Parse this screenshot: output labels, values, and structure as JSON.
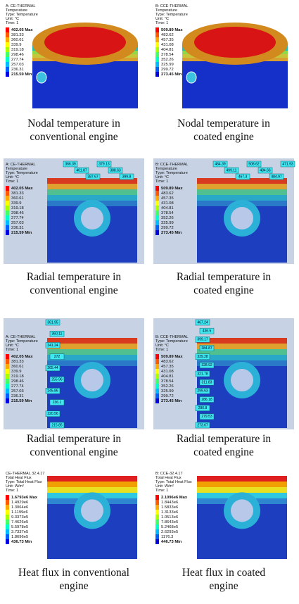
{
  "panels": [
    {
      "header": [
        "A: CE-THERMAL",
        "Temperature",
        "Type: Temperature",
        "Unit: °C",
        "Time: 1"
      ],
      "legend": [
        "402.05 Max",
        "381.33",
        "360.61",
        "339.9",
        "319.18",
        "298.46",
        "277.74",
        "257.03",
        "236.31",
        "215.59 Min"
      ],
      "callouts": [],
      "caption": [
        "Nodal temperature in",
        "conventional engine"
      ]
    },
    {
      "header": [
        "B: CCE-THERMAL",
        "Temperature",
        "Type: Temperature",
        "Unit: °C",
        "Time: 1"
      ],
      "legend": [
        "509.89 Max",
        "483.62",
        "457.35",
        "431.08",
        "404.81",
        "378.54",
        "352.26",
        "325.99",
        "299.72",
        "273.45 Min"
      ],
      "callouts": [],
      "caption": [
        "Nodal temperature in",
        "coated engine"
      ]
    },
    {
      "header": [
        "A: CE-THERMAL",
        "Temperature",
        "Type: Temperature",
        "Unit: °C",
        "Time: 1"
      ],
      "legend": [
        "402.05 Max",
        "381.33",
        "360.61",
        "339.9",
        "319.18",
        "298.46",
        "277.74",
        "257.03",
        "236.31",
        "215.59 Min"
      ],
      "callouts": [
        "366.39",
        "401.87",
        "387.67",
        "379.13",
        "388.63",
        "399.8"
      ],
      "caption": [
        "Radial temperature in",
        "conventional engine"
      ]
    },
    {
      "header": [
        "B: CCE-THERMAL",
        "Temperature",
        "Type: Temperature",
        "Unit: °C",
        "Time: 1"
      ],
      "legend": [
        "509.89 Max",
        "483.62",
        "457.35",
        "431.08",
        "404.81",
        "378.54",
        "352.26",
        "325.99",
        "299.72",
        "273.45 Min"
      ],
      "callouts": [
        "464.39",
        "499.11",
        "467.3",
        "508.62",
        "484.66",
        "484.97",
        "471.93"
      ],
      "caption": [
        "Radial temperature in",
        "coated engine"
      ]
    },
    {
      "header": [
        "A: CE-THERMAL",
        "Type: Temperature",
        "Unit: °C",
        "Time: 1"
      ],
      "legend": [
        "402.05 Max",
        "381.33",
        "360.61",
        "339.9",
        "319.18",
        "298.46",
        "277.74",
        "257.03",
        "236.31",
        "215.59 Min"
      ],
      "callouts": [
        "361.95",
        "360.11",
        "341.24",
        "272",
        "265.44",
        "255.96",
        "245.86",
        "236.1",
        "220.56",
        "215.85"
      ],
      "caption": [
        "Radial temperature in",
        "conventional engine"
      ]
    },
    {
      "header": [
        "B: CCE-THERMAL",
        "Type: Temperature",
        "Unit: °C",
        "Time: 1"
      ],
      "legend": [
        "509.89 Max",
        "483.62",
        "457.35",
        "431.08",
        "404.81",
        "378.54",
        "352.26",
        "325.99",
        "299.72",
        "273.45 Min"
      ],
      "callouts": [
        "467.24",
        "436.5",
        "399.17",
        "384.87",
        "339.28",
        "328.92",
        "321.78",
        "311.83",
        "299.63",
        "286.18",
        "280.8",
        "279.53",
        "273.67"
      ],
      "caption": [
        "Radial temperature in",
        "coated engine"
      ]
    },
    {
      "header": [
        "CE-THERMAL 32.4.17",
        "Total Heat Flux",
        "Type: Total Heat Flux",
        "Unit: W/m²",
        "Time: 1"
      ],
      "legend": [
        "1.6793e6 Max",
        "1.4929e6",
        "1.3064e6",
        "1.1199e6",
        "9.3373e5",
        "7.4626e5",
        "5.5978e5",
        "3.7337e5",
        "1.8696e5",
        "436.73 Min"
      ],
      "callouts": [],
      "caption": [
        "Heat flux in conventional",
        "engine"
      ]
    },
    {
      "header": [
        "B: CCE-32.4.17",
        "Total Heat Flux",
        "Type: Total Heat Flux",
        "Unit: W/m²",
        "Time: 1"
      ],
      "legend": [
        "2.1096e6 Max",
        "1.8443e6",
        "1.5833e6",
        "1.3133e6",
        "1.0513e6",
        "7.8643e5",
        "5.2468e5",
        "2.6293e5",
        "1176.3",
        "446.73 Min"
      ],
      "callouts": [],
      "caption": [
        "Heat flux in coated",
        "engine"
      ]
    }
  ]
}
